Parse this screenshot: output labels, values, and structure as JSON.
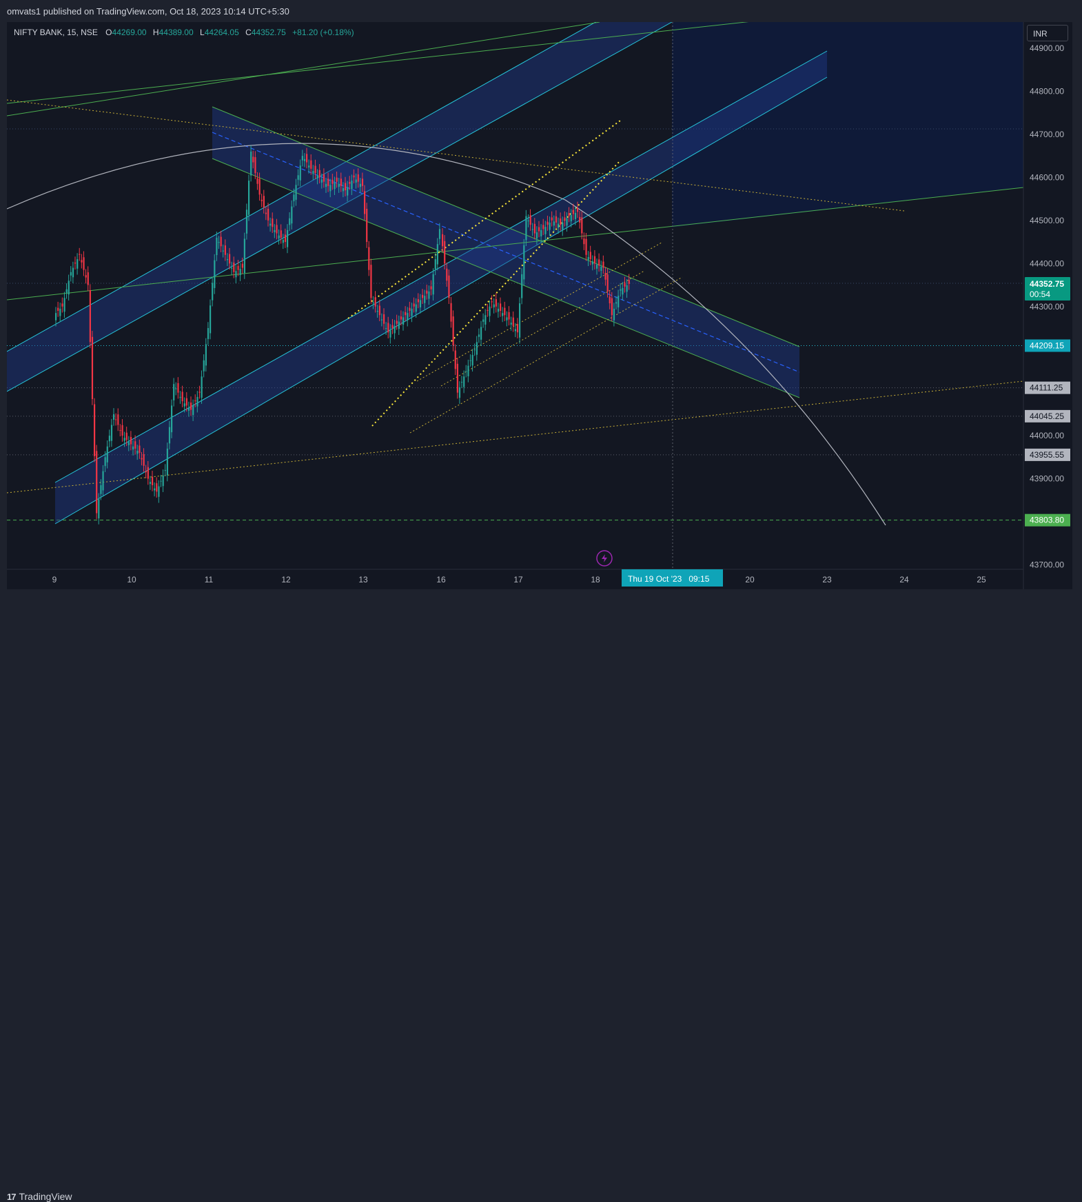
{
  "header": {
    "publish_text": "omvats1 published on TradingView.com, Oct 18, 2023 10:14 UTC+5:30"
  },
  "legend": {
    "symbol": "NIFTY BANK, 15, NSE",
    "o_label": "O",
    "o_value": "44269.00",
    "h_label": "H",
    "h_value": "44389.00",
    "l_label": "L",
    "l_value": "44264.05",
    "c_label": "C",
    "c_value": "44352.75",
    "change": "+81.20 (+0.18%)"
  },
  "currency_button": "INR",
  "footer": {
    "brand": "TradingView",
    "logo_text": "17"
  },
  "colors": {
    "up": "#26a69a",
    "down": "#f23645",
    "channel_fill": "#1e3a8a",
    "green_line": "#4caf50",
    "teal_line": "#26c6da",
    "yellow": "#ffeb3b",
    "blue_dashed": "#2962ff",
    "arc": "#b2b5be"
  },
  "chart_data": {
    "type": "candlestick",
    "symbol": "NIFTY BANK",
    "interval": "15",
    "exchange": "NSE",
    "currency": "INR",
    "y_axis": {
      "ticks": [
        43700,
        43800,
        43900,
        44000,
        44100,
        44200,
        44300,
        44400,
        44500,
        44600,
        44700,
        44800,
        44900
      ],
      "tick_labels": [
        "43700.00",
        "",
        "43900.00",
        "44000.00",
        "",
        "",
        "44300.00",
        "44400.00",
        "44500.00",
        "44600.00",
        "44700.00",
        "44800.00",
        "44900.00"
      ],
      "ylim": [
        43685,
        44925
      ]
    },
    "x_axis": {
      "tick_labels": [
        "9",
        "10",
        "11",
        "12",
        "13",
        "16",
        "17",
        "18",
        "20",
        "23",
        "24",
        "25"
      ],
      "crosshair_label": "Thu 19 Oct '23   09:15"
    },
    "last_price": {
      "value": 44352.75,
      "label": "44352.75",
      "countdown": "00:54"
    },
    "price_markers": [
      {
        "label": "44209.15",
        "value": 44209.15,
        "style": "cyan"
      },
      {
        "label": "44111.25",
        "value": 44111.25,
        "style": "gray"
      },
      {
        "label": "44045.25",
        "value": 44045.25,
        "style": "gray"
      },
      {
        "label": "43955.55",
        "value": 43955.55,
        "style": "gray"
      },
      {
        "label": "43803.80",
        "value": 43803.8,
        "style": "green"
      }
    ],
    "session_closes": [
      {
        "day": "9",
        "values": [
          44300,
          44380,
          44420,
          44350,
          43820,
          43950,
          44050,
          44000,
          43980
        ]
      },
      {
        "day": "10",
        "values": [
          43960,
          43900,
          43870,
          43920,
          44120,
          44080,
          44060,
          44100,
          44250
        ]
      },
      {
        "day": "11",
        "values": [
          44460,
          44420,
          44380,
          44390,
          44660,
          44560,
          44500,
          44470,
          44450
        ]
      },
      {
        "day": "12",
        "values": [
          44560,
          44650,
          44620,
          44600,
          44580,
          44590,
          44570,
          44600,
          44580
        ]
      },
      {
        "day": "13",
        "values": [
          44320,
          44280,
          44240,
          44260,
          44280,
          44300,
          44320,
          44340,
          44480
        ]
      },
      {
        "day": "16",
        "values": [
          44320,
          44100,
          44150,
          44200,
          44270,
          44310,
          44290,
          44270,
          44240
        ]
      },
      {
        "day": "17",
        "values": [
          44510,
          44470,
          44480,
          44500,
          44490,
          44510,
          44520,
          44420,
          44400
        ]
      },
      {
        "day": "18",
        "values": [
          44390,
          44280,
          44340,
          44352.75
        ]
      }
    ]
  }
}
